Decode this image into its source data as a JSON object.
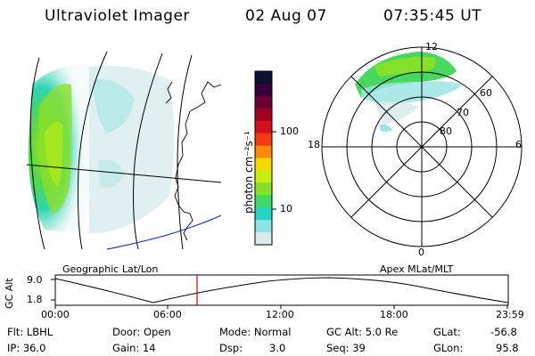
{
  "header": {
    "instrument": "Ultraviolet Imager",
    "date": "02 Aug 07",
    "time": "07:35:45 UT"
  },
  "colorbar": {
    "unit_label": "photon cm⁻²s⁻¹",
    "ticks": [
      "100",
      "10"
    ],
    "colors": [
      "#101030",
      "#38003a",
      "#6a0030",
      "#a00020",
      "#d0101a",
      "#f03a10",
      "#f88a08",
      "#f4d800",
      "#c8ee10",
      "#84e028",
      "#40d868",
      "#22d4c4",
      "#8ee4e4",
      "#d8ecec"
    ]
  },
  "left_panel": {
    "label": "Geographic Lat/Lon"
  },
  "right_panel": {
    "label": "Apex MLat/MLT",
    "mlt_labels": {
      "top": "12",
      "left": "18",
      "right": "6",
      "bottom": "0"
    },
    "lat_labels": [
      "60",
      "70",
      "80"
    ]
  },
  "timeline": {
    "axis_title": "GC Alt",
    "y_ticks": [
      "9.0",
      "1.8"
    ],
    "x_ticks": [
      "00:00",
      "06:00",
      "12:00",
      "18:00",
      "23:59"
    ],
    "marker_color": "#cc0000"
  },
  "status": {
    "flt": "Flt: LBHL",
    "ip": "IP: 36.0",
    "door": "Door: Open",
    "gain": "Gain: 14",
    "mode": "Mode: Normal",
    "dsp_label": "Dsp:",
    "dsp_value": "3.0",
    "gc_alt": "GC Alt: 5.0 Re",
    "seq": "Seq: 39",
    "glat_label": "GLat:",
    "glat_value": "-56.8",
    "glon_label": "GLon:",
    "glon_value": "95.8"
  }
}
